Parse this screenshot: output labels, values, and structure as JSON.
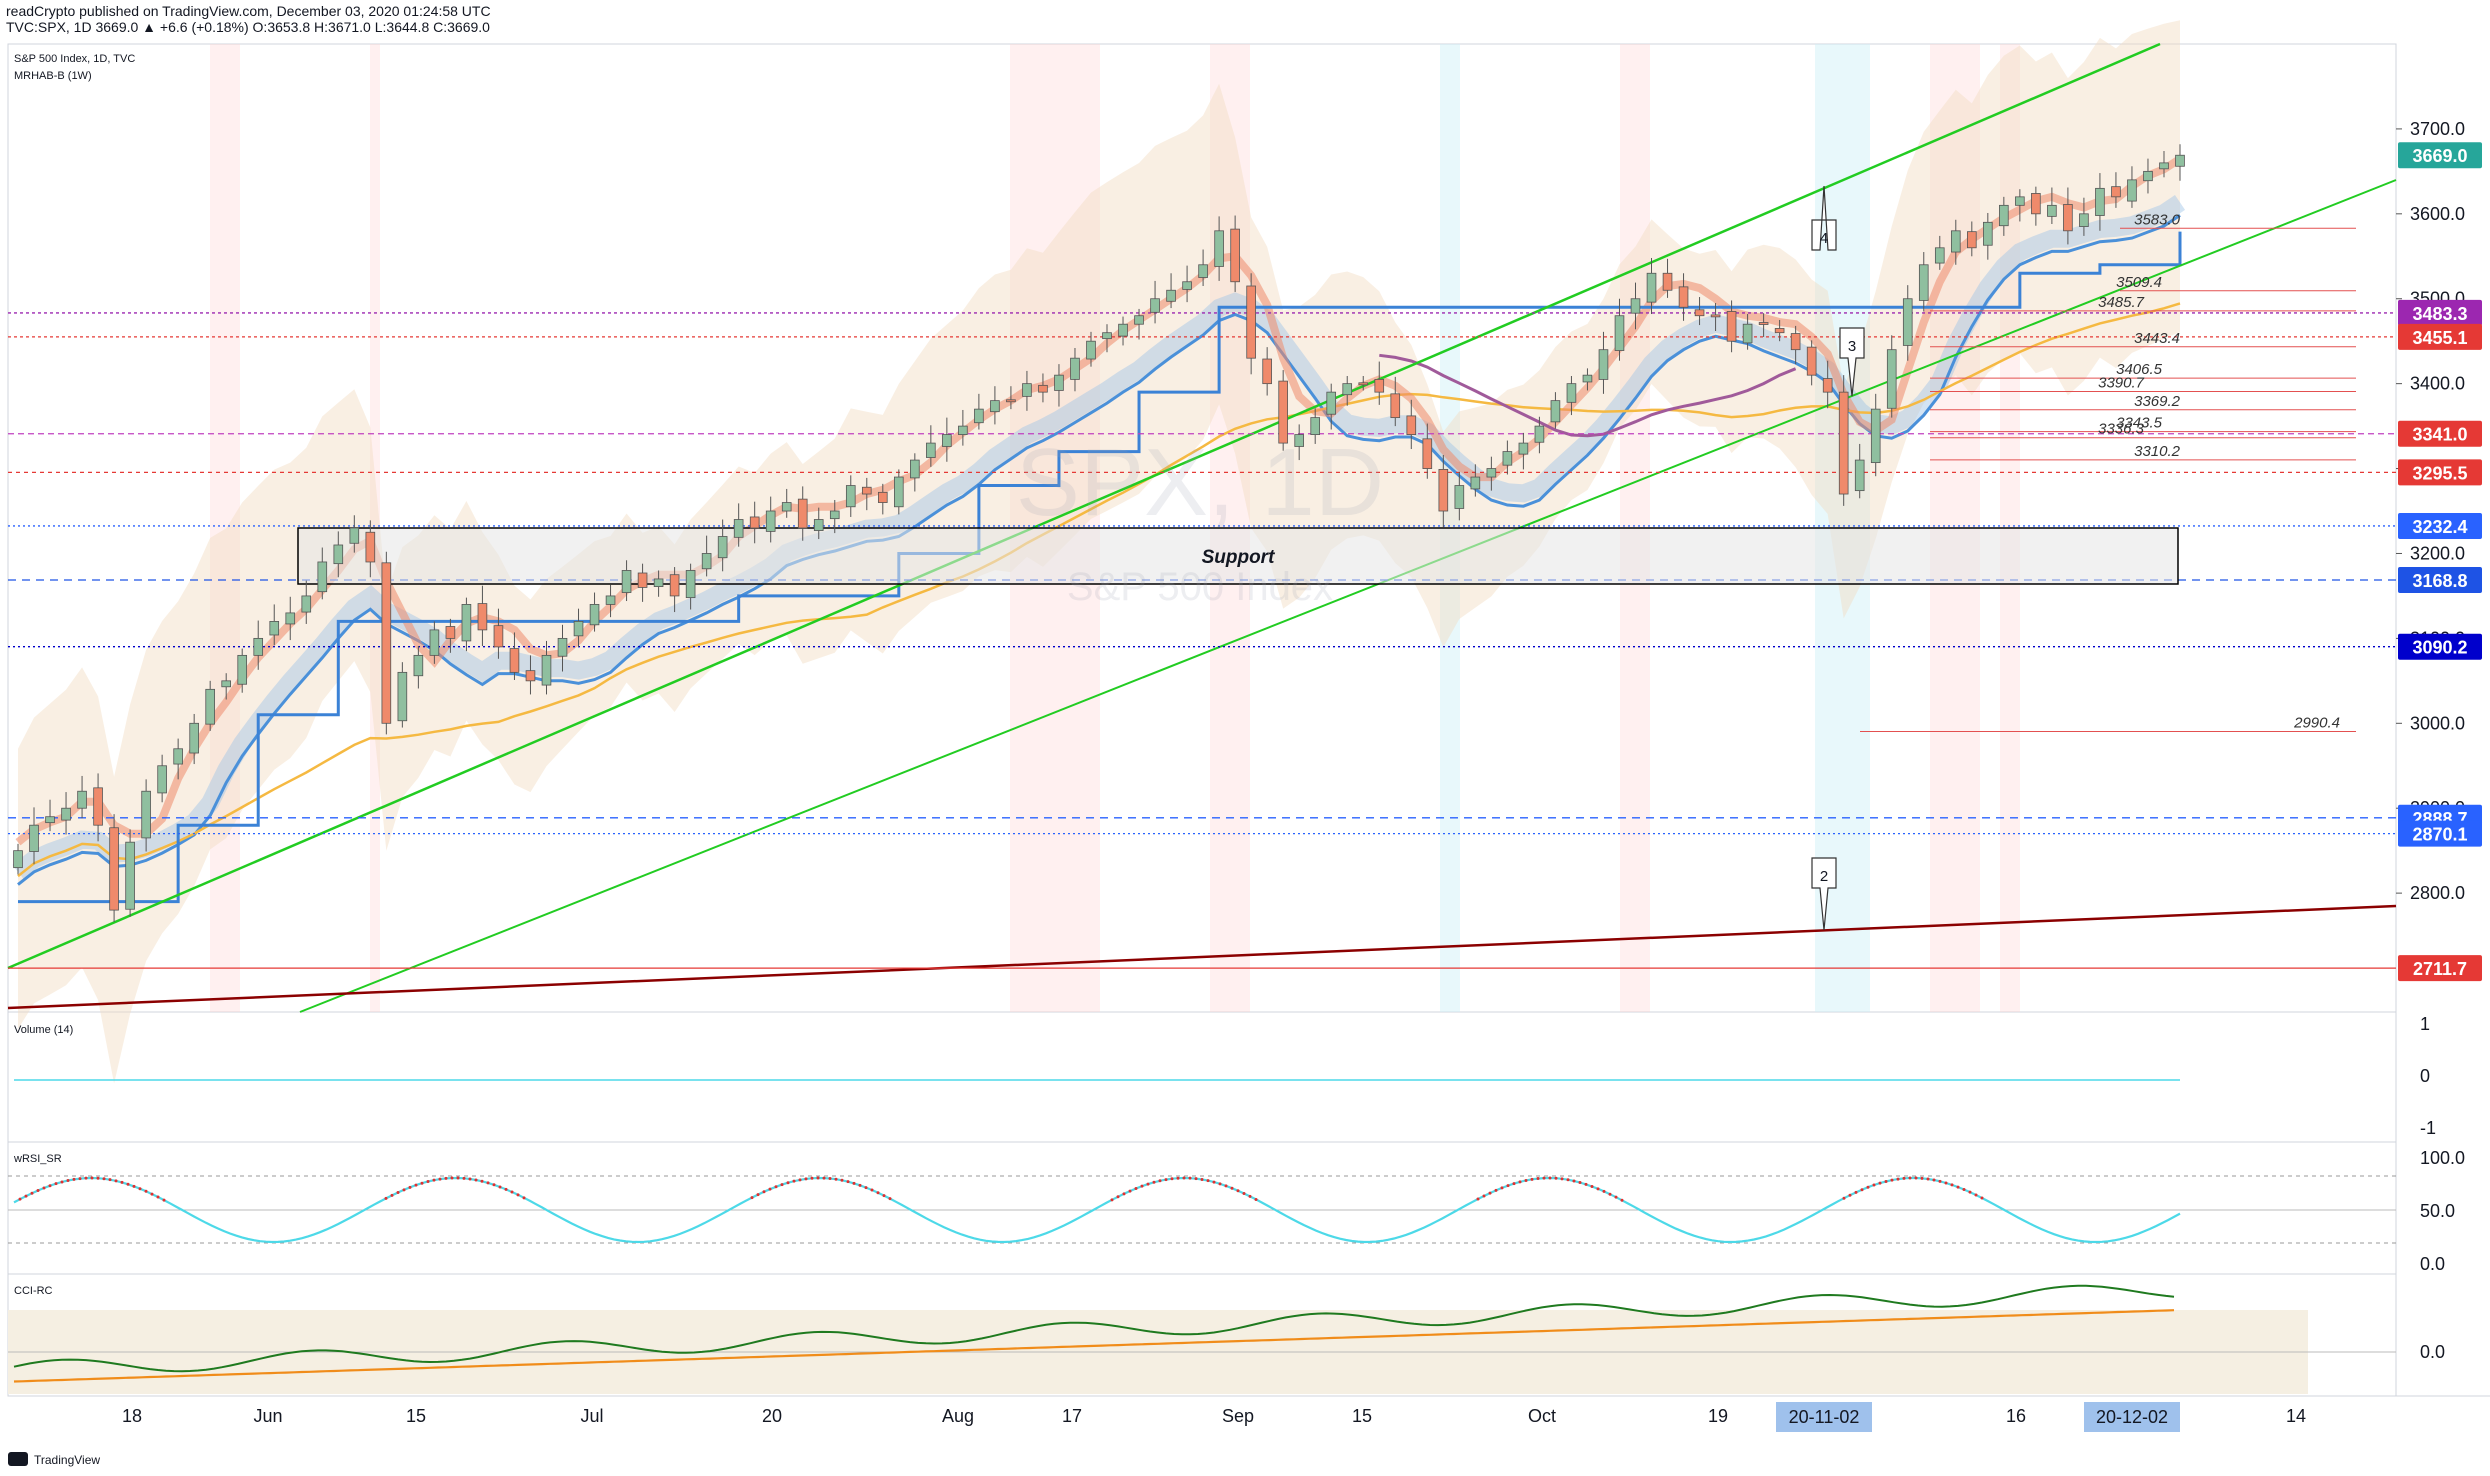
{
  "header": {
    "line1": "readCrypto published on TradingView.com, December 03, 2020 01:24:58 UTC",
    "line2": "TVC:SPX, 1D  3669.0  ▲ +6.6 (+0.18%)  O:3653.8  H:3671.0  L:3644.8  C:3669.0"
  },
  "legend": {
    "title": "S&P 500 Index, 1D, TVC",
    "indicator": "MRHAB-B (1W)"
  },
  "watermark": {
    "symbol": "SPX, 1D",
    "name": "S&P 500 Index"
  },
  "footer": {
    "brand": "TradingView"
  },
  "panes": {
    "volume": {
      "label": "Volume (14)",
      "ticks": [
        "1",
        "0",
        "-1"
      ]
    },
    "rsi": {
      "label": "wRSI_SR",
      "ticks": [
        "100.0",
        "50.0",
        "0.0"
      ]
    },
    "cci": {
      "label": "CCI-RC",
      "ticks": [
        "0.0"
      ]
    }
  },
  "colors": {
    "up": "#8fbf9f",
    "down": "#ef8a6b",
    "green_line": "#22cc22",
    "dark_red": "#8b0000",
    "blue": "#4a90d9",
    "orange": "#f5b942",
    "purple": "#a05a9a",
    "red": "#e03030",
    "cyan": "#4dd9e8"
  },
  "chart_data": {
    "type": "candlestick",
    "symbol": "SPX",
    "ylim": [
      2660,
      3800
    ],
    "y_ticks": [
      2800,
      2900,
      3000,
      3100,
      3200,
      3300,
      3400,
      3500,
      3600,
      3700
    ],
    "x_ticks": [
      "18",
      "Jun",
      "15",
      "Jul",
      "20",
      "Aug",
      "17",
      "Sep",
      "15",
      "Oct",
      "19",
      "16",
      "14"
    ],
    "x_highlight": [
      "20-11-02",
      "20-12-02"
    ],
    "price_badges": [
      {
        "value": "3669.0",
        "color": "#26a69a"
      },
      {
        "value": "3483.3",
        "color": "#9c27b0"
      },
      {
        "value": "3455.1",
        "color": "#e53935"
      },
      {
        "value": "3341.0",
        "color": "#e53935"
      },
      {
        "value": "3295.5",
        "color": "#e53935"
      },
      {
        "value": "3232.4",
        "color": "#2962ff"
      },
      {
        "value": "3168.8",
        "color": "#1e53e5"
      },
      {
        "value": "3090.2",
        "color": "#0000cc"
      },
      {
        "value": "2888.7",
        "color": "#2962ff"
      },
      {
        "value": "2870.1",
        "color": "#2962ff"
      },
      {
        "value": "2711.7",
        "color": "#e53935"
      }
    ],
    "level_labels": [
      "3583.0",
      "3509.4",
      "3485.7",
      "3443.4",
      "3406.5",
      "3390.7",
      "3369.2",
      "3343.5",
      "3336.3",
      "3310.2",
      "2990.4"
    ],
    "annotations": [
      {
        "text": "Support",
        "y_low": 3168,
        "y_high": 3232
      },
      {
        "text": "4",
        "type": "callout"
      },
      {
        "text": "3",
        "type": "callout"
      },
      {
        "text": "2",
        "type": "callout"
      }
    ],
    "candles_close": [
      2850,
      2880,
      2890,
      2900,
      2920,
      2880,
      2780,
      2860,
      2920,
      2950,
      2970,
      3000,
      3040,
      3050,
      3080,
      3100,
      3120,
      3130,
      3150,
      3190,
      3210,
      3230,
      3190,
      3000,
      3060,
      3080,
      3110,
      3100,
      3140,
      3110,
      3090,
      3060,
      3050,
      3080,
      3100,
      3120,
      3140,
      3150,
      3180,
      3160,
      3170,
      3150,
      3180,
      3200,
      3220,
      3240,
      3230,
      3250,
      3260,
      3230,
      3240,
      3250,
      3280,
      3270,
      3260,
      3290,
      3310,
      3330,
      3340,
      3350,
      3370,
      3380,
      3380,
      3400,
      3390,
      3410,
      3430,
      3450,
      3460,
      3470,
      3480,
      3500,
      3510,
      3520,
      3540,
      3580,
      3520,
      3430,
      3400,
      3330,
      3340,
      3360,
      3390,
      3400,
      3400,
      3390,
      3360,
      3340,
      3300,
      3250,
      3280,
      3290,
      3300,
      3320,
      3330,
      3350,
      3380,
      3400,
      3410,
      3440,
      3480,
      3500,
      3530,
      3510,
      3490,
      3480,
      3480,
      3450,
      3470,
      3470,
      3460,
      3440,
      3410,
      3390,
      3270,
      3310,
      3370,
      3440,
      3500,
      3540,
      3560,
      3580,
      3560,
      3590,
      3610,
      3620,
      3600,
      3610,
      3580,
      3600,
      3630,
      3620,
      3640,
      3650,
      3660,
      3669
    ]
  }
}
